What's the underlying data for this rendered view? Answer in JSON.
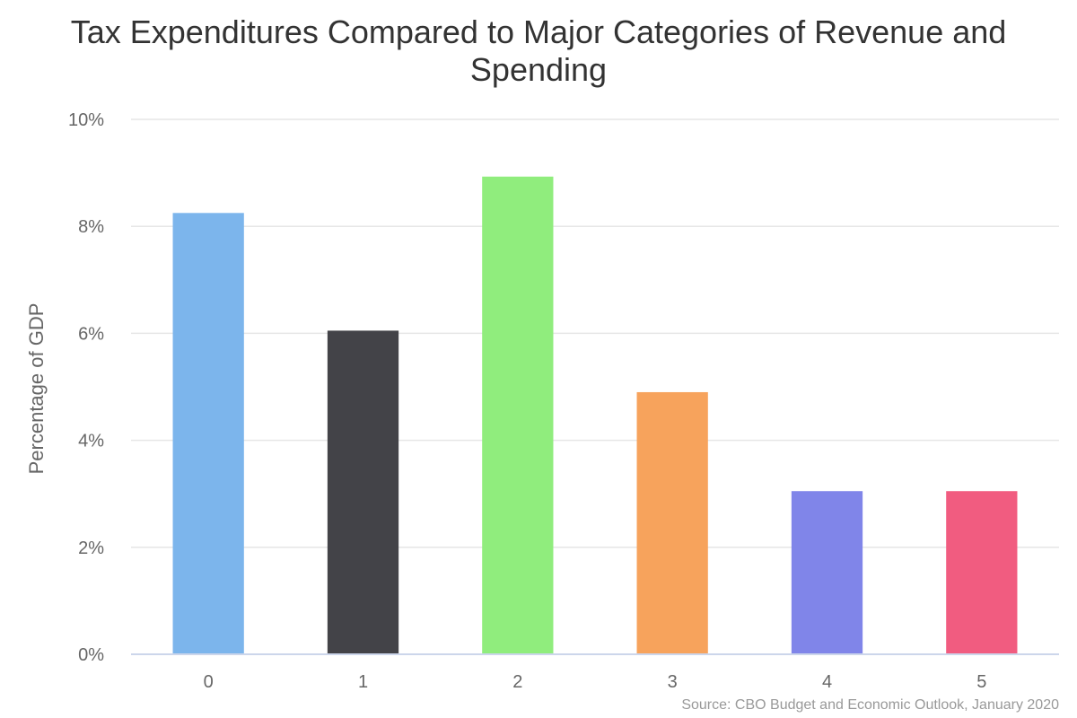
{
  "chart_data": {
    "type": "bar",
    "title_lines": [
      "Tax Expenditures Compared to Major Categories of Revenue and",
      "Spending"
    ],
    "ylabel": "Percentage of GDP",
    "xlabel": "",
    "categories": [
      "0",
      "1",
      "2",
      "3",
      "4",
      "5"
    ],
    "values": [
      8.25,
      6.05,
      8.93,
      4.9,
      3.05,
      3.05
    ],
    "colors": [
      "#7cb5ec",
      "#434348",
      "#90ed7d",
      "#f7a35c",
      "#8085e9",
      "#f15c80"
    ],
    "ylim": [
      0,
      10
    ],
    "yticks": [
      0,
      2,
      4,
      6,
      8,
      10
    ],
    "ytick_suffix": "%",
    "grid": true,
    "legend": "none",
    "source": "Source: CBO Budget and Economic Outlook, January 2020"
  }
}
